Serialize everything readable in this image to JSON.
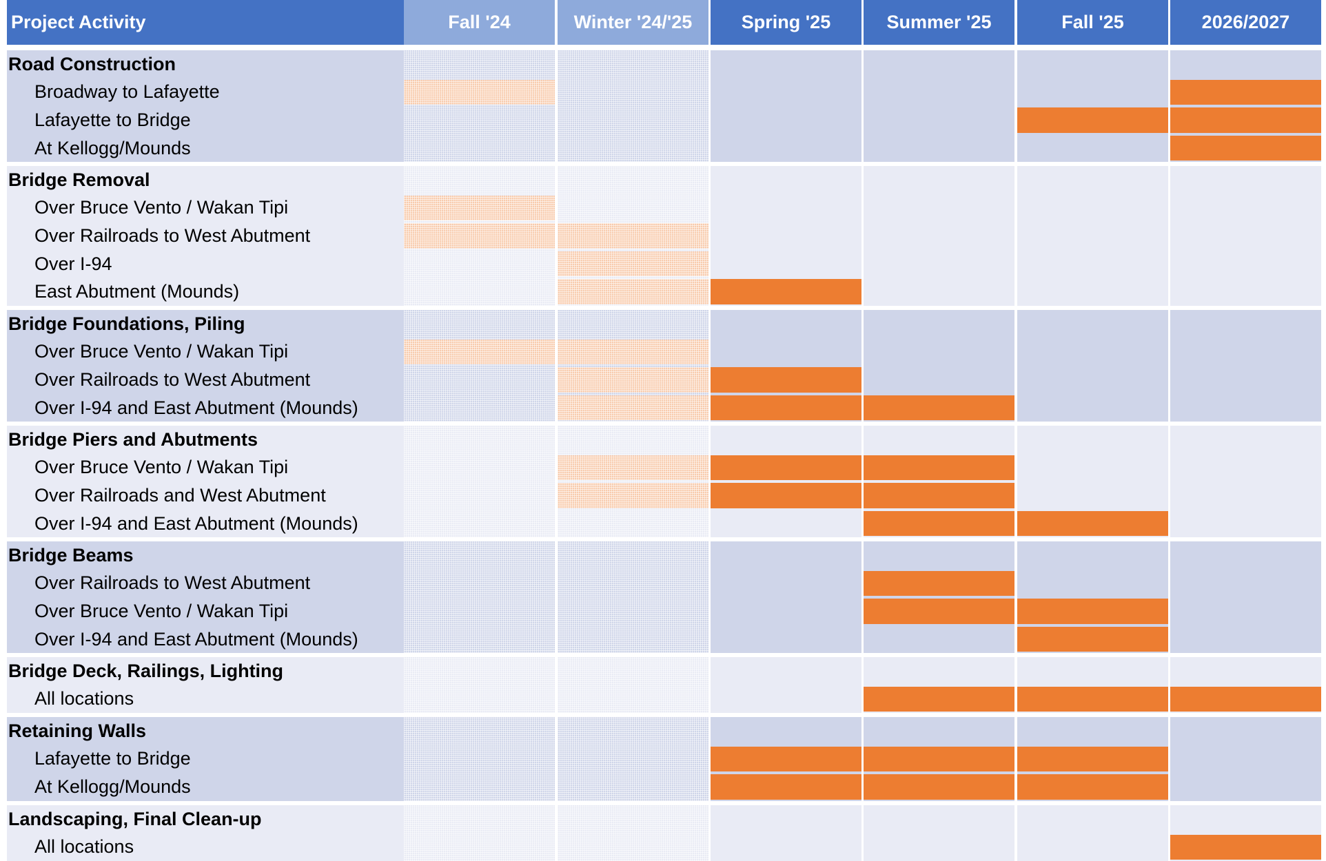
{
  "chart_data": {
    "type": "gantt",
    "header_label": "Project Activity",
    "periods": [
      "Fall '24",
      "Winter '24/'25",
      "Spring '25",
      "Summer '25",
      "Fall '25",
      "2026/2027"
    ],
    "completed_periods": [
      0,
      1
    ],
    "colors": {
      "header": "#4472c4",
      "header_completed": "#8eaadb",
      "band_a": "#cfd5e9",
      "band_b": "#e9ebf5",
      "bar_active": "#ed7d31",
      "bar_completed": "#f8cbad"
    },
    "groups": [
      {
        "name": "Road Construction",
        "band": "a",
        "tasks": [
          {
            "name": "Broadway to Lafayette",
            "periods": [
              0,
              5
            ]
          },
          {
            "name": "Lafayette to Bridge",
            "periods": [
              4,
              5
            ]
          },
          {
            "name": "At Kellogg/Mounds",
            "periods": [
              5
            ]
          }
        ]
      },
      {
        "name": "Bridge Removal",
        "band": "b",
        "tasks": [
          {
            "name": "Over Bruce Vento / Wakan Tipi",
            "periods": [
              0
            ]
          },
          {
            "name": "Over Railroads to West Abutment",
            "periods": [
              0,
              1
            ]
          },
          {
            "name": "Over I-94",
            "periods": [
              1
            ]
          },
          {
            "name": "East Abutment (Mounds)",
            "periods": [
              1,
              2
            ]
          }
        ]
      },
      {
        "name": "Bridge Foundations, Piling",
        "band": "a",
        "tasks": [
          {
            "name": "Over Bruce Vento / Wakan Tipi",
            "periods": [
              0,
              1
            ]
          },
          {
            "name": "Over Railroads to West Abutment",
            "periods": [
              1,
              2
            ]
          },
          {
            "name": "Over I-94 and East Abutment (Mounds)",
            "periods": [
              1,
              2,
              3
            ]
          }
        ]
      },
      {
        "name": "Bridge Piers and Abutments",
        "band": "b",
        "tasks": [
          {
            "name": "Over Bruce Vento / Wakan Tipi",
            "periods": [
              1,
              2,
              3
            ]
          },
          {
            "name": "Over Railroads and West Abutment",
            "periods": [
              1,
              2,
              3
            ]
          },
          {
            "name": "Over I-94 and East Abutment (Mounds)",
            "periods": [
              3,
              4
            ]
          }
        ]
      },
      {
        "name": "Bridge Beams",
        "band": "a",
        "tasks": [
          {
            "name": "Over Railroads to West Abutment",
            "periods": [
              3
            ]
          },
          {
            "name": "Over Bruce Vento / Wakan Tipi",
            "periods": [
              3,
              4
            ]
          },
          {
            "name": "Over I-94 and East Abutment (Mounds)",
            "periods": [
              4
            ]
          }
        ]
      },
      {
        "name": "Bridge Deck, Railings, Lighting",
        "band": "b",
        "tasks": [
          {
            "name": "All locations",
            "periods": [
              3,
              4,
              5
            ]
          }
        ]
      },
      {
        "name": "Retaining Walls",
        "band": "a",
        "tasks": [
          {
            "name": "Lafayette to Bridge",
            "periods": [
              2,
              3,
              4
            ]
          },
          {
            "name": "At Kellogg/Mounds",
            "periods": [
              2,
              3,
              4
            ]
          }
        ]
      },
      {
        "name": "Landscaping, Final Clean-up",
        "band": "b",
        "tasks": [
          {
            "name": "All locations",
            "periods": [
              5
            ]
          }
        ]
      }
    ]
  }
}
